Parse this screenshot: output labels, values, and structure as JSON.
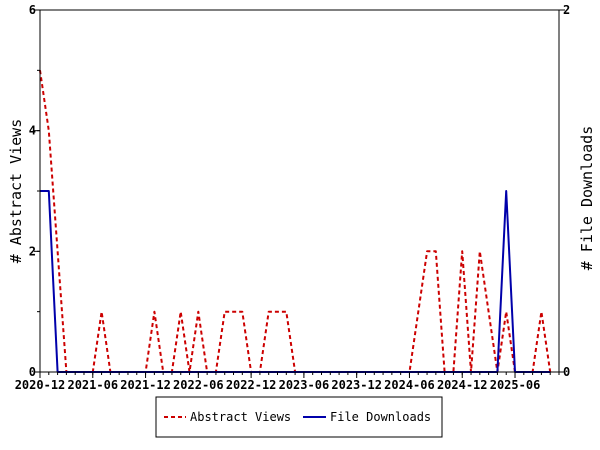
{
  "chart_data": {
    "type": "line",
    "x_ticks": [
      "2020-12",
      "2021-06",
      "2021-12",
      "2022-06",
      "2022-12",
      "2023-06",
      "2023-12",
      "2024-06",
      "2024-12",
      "2025-06"
    ],
    "y_left": {
      "label": "# Abstract Views",
      "range": [
        0,
        6
      ],
      "ticks": [
        "0",
        "2",
        "4",
        "6"
      ]
    },
    "y_right": {
      "label": "# File Downloads",
      "range": [
        0,
        2
      ],
      "ticks": [
        "0",
        "2"
      ]
    },
    "x_range": [
      "2020-12-01",
      "2025-11-01"
    ],
    "legend_position": "bottom-center",
    "series": [
      {
        "name": "Abstract Views",
        "axis": "left",
        "color": "#cc0000",
        "style": "dashed",
        "points": [
          [
            "2020-12-01",
            5
          ],
          [
            "2021-01-01",
            4
          ],
          [
            "2021-02-01",
            2
          ],
          [
            "2021-03-01",
            0
          ],
          [
            "2021-04-01",
            0
          ],
          [
            "2021-05-01",
            0
          ],
          [
            "2021-06-01",
            0
          ],
          [
            "2021-07-01",
            1
          ],
          [
            "2021-08-01",
            0
          ],
          [
            "2021-09-01",
            0
          ],
          [
            "2021-10-01",
            0
          ],
          [
            "2021-11-01",
            0
          ],
          [
            "2021-12-01",
            0
          ],
          [
            "2022-01-01",
            1
          ],
          [
            "2022-02-01",
            0
          ],
          [
            "2022-03-01",
            0
          ],
          [
            "2022-04-01",
            1
          ],
          [
            "2022-05-01",
            0
          ],
          [
            "2022-06-01",
            1
          ],
          [
            "2022-07-01",
            0
          ],
          [
            "2022-08-01",
            0
          ],
          [
            "2022-09-01",
            1
          ],
          [
            "2022-10-01",
            1
          ],
          [
            "2022-11-01",
            1
          ],
          [
            "2022-12-01",
            0
          ],
          [
            "2023-01-01",
            0
          ],
          [
            "2023-02-01",
            1
          ],
          [
            "2023-03-01",
            1
          ],
          [
            "2023-04-01",
            1
          ],
          [
            "2023-05-01",
            0
          ],
          [
            "2023-06-01",
            0
          ],
          [
            "2023-12-01",
            0
          ],
          [
            "2024-06-01",
            0
          ],
          [
            "2024-07-01",
            1
          ],
          [
            "2024-08-01",
            2
          ],
          [
            "2024-09-01",
            2
          ],
          [
            "2024-10-01",
            0
          ],
          [
            "2024-11-01",
            0
          ],
          [
            "2024-12-01",
            2
          ],
          [
            "2025-01-01",
            0
          ],
          [
            "2025-02-01",
            2
          ],
          [
            "2025-03-01",
            1
          ],
          [
            "2025-04-01",
            0
          ],
          [
            "2025-05-01",
            1
          ],
          [
            "2025-06-01",
            0
          ],
          [
            "2025-07-01",
            0
          ],
          [
            "2025-08-01",
            0
          ],
          [
            "2025-09-01",
            1
          ],
          [
            "2025-10-01",
            0
          ]
        ]
      },
      {
        "name": "File Downloads",
        "axis": "right",
        "color": "#0000aa",
        "style": "solid",
        "points": [
          [
            "2020-12-01",
            1
          ],
          [
            "2021-01-01",
            1
          ],
          [
            "2021-02-01",
            0
          ],
          [
            "2021-03-01",
            0
          ],
          [
            "2021-06-01",
            0
          ],
          [
            "2021-12-01",
            0
          ],
          [
            "2022-06-01",
            0
          ],
          [
            "2022-12-01",
            0
          ],
          [
            "2023-06-01",
            0
          ],
          [
            "2023-12-01",
            0
          ],
          [
            "2024-06-01",
            0
          ],
          [
            "2024-12-01",
            0
          ],
          [
            "2025-04-01",
            0
          ],
          [
            "2025-05-01",
            1
          ],
          [
            "2025-06-01",
            0
          ],
          [
            "2025-10-01",
            0
          ]
        ]
      }
    ]
  }
}
